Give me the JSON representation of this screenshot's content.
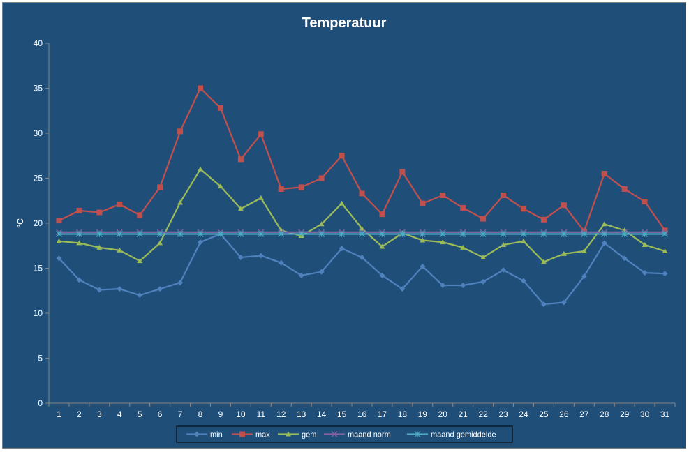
{
  "chart_data": {
    "type": "line",
    "title": "Temperatuur",
    "xlabel": "",
    "ylabel": "°C",
    "ylim": [
      0,
      40
    ],
    "yticks": [
      0,
      5,
      10,
      15,
      20,
      25,
      30,
      35,
      40
    ],
    "categories": [
      "1",
      "2",
      "3",
      "4",
      "5",
      "6",
      "7",
      "8",
      "9",
      "10",
      "11",
      "12",
      "13",
      "14",
      "15",
      "16",
      "17",
      "18",
      "19",
      "20",
      "21",
      "22",
      "23",
      "24",
      "25",
      "26",
      "27",
      "28",
      "29",
      "30",
      "31"
    ],
    "grid": false,
    "legend_position": "bottom",
    "series": [
      {
        "name": "min",
        "color": "#4f81bd",
        "marker": "diamond",
        "values": [
          16.1,
          13.7,
          12.6,
          12.7,
          12.0,
          12.7,
          13.4,
          17.9,
          18.8,
          16.2,
          16.4,
          15.6,
          14.2,
          14.6,
          17.2,
          16.2,
          14.2,
          12.7,
          15.2,
          13.1,
          13.1,
          13.5,
          14.8,
          13.6,
          11.0,
          11.2,
          14.1,
          17.8,
          16.1,
          14.5,
          14.4
        ]
      },
      {
        "name": "max",
        "color": "#c0504d",
        "marker": "square",
        "values": [
          20.3,
          21.4,
          21.2,
          22.1,
          20.9,
          24.0,
          30.2,
          35.0,
          32.8,
          27.1,
          29.9,
          23.8,
          24.0,
          25.0,
          27.5,
          23.3,
          21.0,
          25.7,
          22.2,
          23.1,
          21.7,
          20.5,
          23.1,
          21.6,
          20.4,
          22.0,
          19.1,
          25.5,
          23.8,
          22.4,
          19.2
        ]
      },
      {
        "name": "gem",
        "color": "#9bbb59",
        "marker": "triangle",
        "values": [
          18.0,
          17.8,
          17.3,
          17.0,
          15.8,
          17.8,
          22.3,
          26.0,
          24.1,
          21.6,
          22.8,
          19.2,
          18.6,
          19.9,
          22.2,
          19.4,
          17.4,
          18.9,
          18.1,
          17.9,
          17.3,
          16.2,
          17.6,
          18.0,
          15.7,
          16.6,
          16.9,
          19.9,
          19.2,
          17.6,
          16.9
        ]
      },
      {
        "name": "maand norm",
        "color": "#8064a2",
        "marker": "x",
        "values": [
          19.0,
          19.0,
          19.0,
          19.0,
          19.0,
          19.0,
          19.0,
          19.0,
          19.0,
          19.0,
          19.0,
          19.0,
          19.0,
          19.0,
          19.0,
          19.0,
          19.0,
          19.0,
          19.0,
          19.0,
          19.0,
          19.0,
          19.0,
          19.0,
          19.0,
          19.0,
          19.0,
          19.0,
          19.0,
          19.0,
          19.0
        ]
      },
      {
        "name": "maand gemiddelde",
        "color": "#4bacc6",
        "marker": "star",
        "values": [
          18.8,
          18.8,
          18.8,
          18.8,
          18.8,
          18.8,
          18.8,
          18.8,
          18.8,
          18.8,
          18.8,
          18.8,
          18.8,
          18.8,
          18.8,
          18.8,
          18.8,
          18.8,
          18.8,
          18.8,
          18.8,
          18.8,
          18.8,
          18.8,
          18.8,
          18.8,
          18.8,
          18.8,
          18.8,
          18.8,
          18.8
        ]
      }
    ]
  }
}
